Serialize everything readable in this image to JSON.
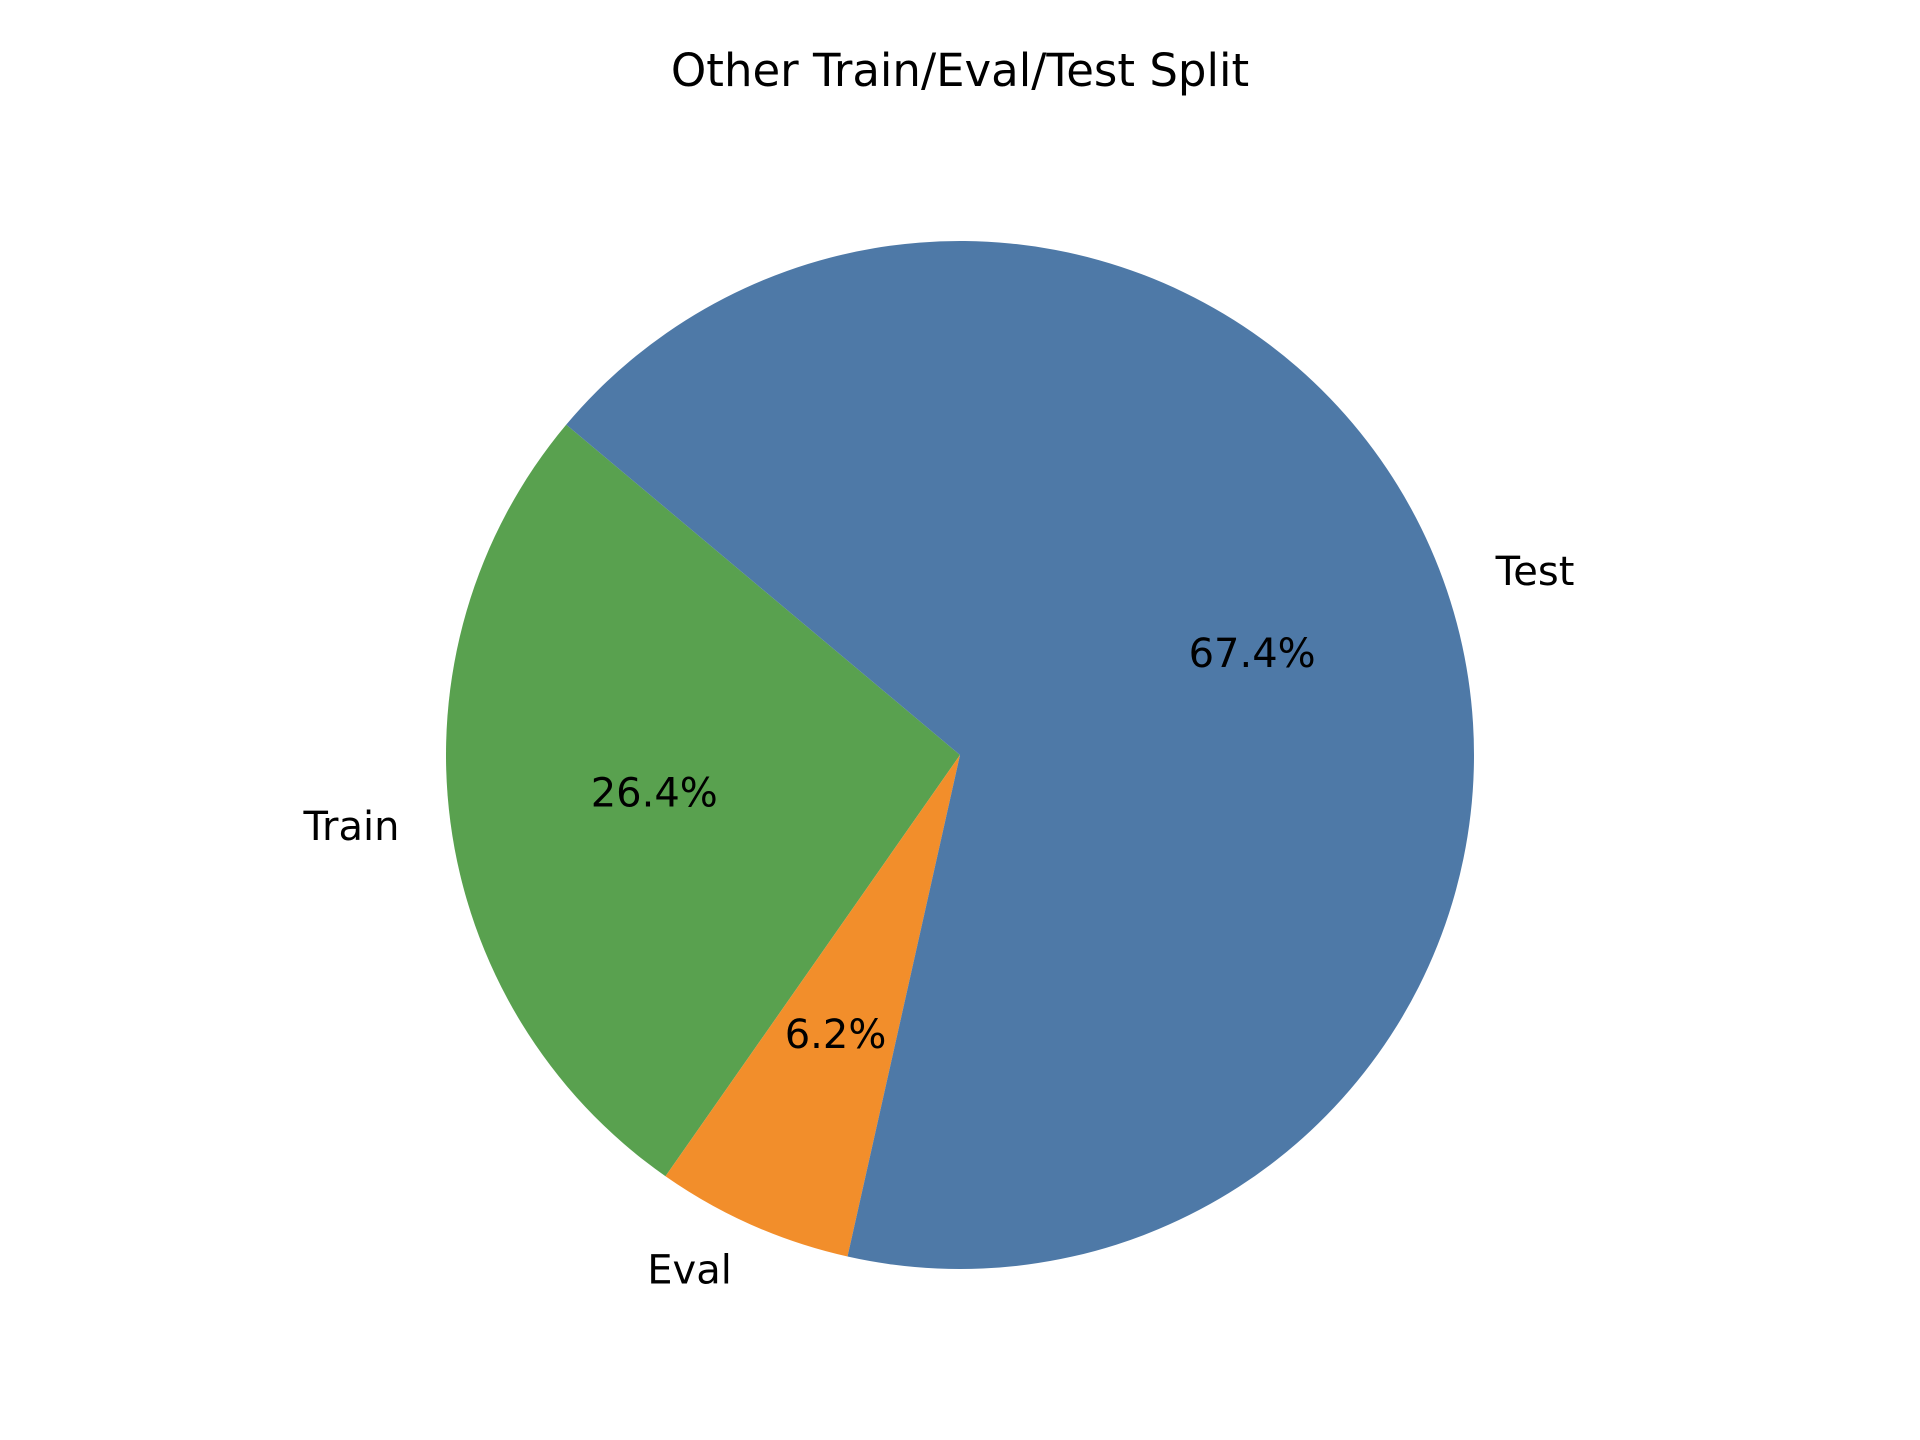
{
  "chart_data": {
    "type": "pie",
    "title": "Other Train/Eval/Test Split",
    "slices": [
      {
        "label": "Train",
        "value": 26.4,
        "pct_label": "26.4%",
        "color": "#59a14f"
      },
      {
        "label": "Eval",
        "value": 6.2,
        "pct_label": "6.2%",
        "color": "#f28e2b"
      },
      {
        "label": "Test",
        "value": 67.4,
        "pct_label": "67.4%",
        "color": "#4e79a7"
      }
    ],
    "start_angle_deg": 140,
    "direction": "counterclockwise"
  }
}
